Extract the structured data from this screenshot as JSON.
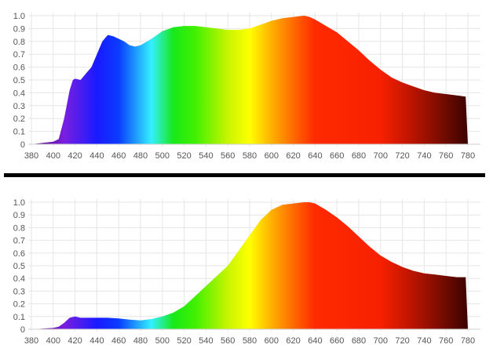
{
  "chart_data": [
    {
      "type": "area",
      "title": "",
      "xlabel": "",
      "ylabel": "",
      "xlim": [
        380,
        780
      ],
      "ylim": [
        0,
        1.0
      ],
      "grid": true,
      "legend": null,
      "fill": "visible-spectrum gradient (violet → blue → cyan → green → yellow → orange → red → dark red)",
      "x_ticks": [
        "380",
        "400",
        "420",
        "440",
        "460",
        "480",
        "500",
        "520",
        "540",
        "560",
        "580",
        "600",
        "620",
        "640",
        "660",
        "680",
        "700",
        "720",
        "740",
        "760",
        "780"
      ],
      "y_ticks": [
        "0",
        "0.1",
        "0.2",
        "0.3",
        "0.4",
        "0.5",
        "0.6",
        "0.7",
        "0.8",
        "0.9",
        "1.0"
      ],
      "x": [
        380,
        390,
        400,
        405,
        410,
        415,
        418,
        420,
        425,
        430,
        435,
        440,
        445,
        450,
        455,
        460,
        465,
        470,
        475,
        480,
        490,
        500,
        510,
        520,
        530,
        540,
        550,
        560,
        570,
        580,
        590,
        600,
        610,
        620,
        630,
        635,
        640,
        650,
        660,
        670,
        680,
        690,
        700,
        710,
        720,
        730,
        740,
        750,
        760,
        770,
        778,
        780
      ],
      "values": [
        0,
        0.01,
        0.02,
        0.04,
        0.2,
        0.42,
        0.5,
        0.51,
        0.5,
        0.55,
        0.6,
        0.7,
        0.8,
        0.85,
        0.84,
        0.82,
        0.8,
        0.77,
        0.76,
        0.77,
        0.82,
        0.88,
        0.91,
        0.92,
        0.92,
        0.91,
        0.9,
        0.89,
        0.89,
        0.9,
        0.93,
        0.96,
        0.98,
        0.99,
        1.0,
        0.99,
        0.97,
        0.92,
        0.87,
        0.8,
        0.73,
        0.65,
        0.58,
        0.52,
        0.48,
        0.45,
        0.42,
        0.4,
        0.39,
        0.38,
        0.37,
        0
      ]
    },
    {
      "type": "area",
      "title": "",
      "xlabel": "",
      "ylabel": "",
      "xlim": [
        380,
        780
      ],
      "ylim": [
        0,
        1.0
      ],
      "grid": true,
      "legend": null,
      "fill": "visible-spectrum gradient (violet → blue → cyan → green → yellow → orange → red → dark red)",
      "x_ticks": [
        "380",
        "400",
        "420",
        "440",
        "460",
        "480",
        "500",
        "520",
        "540",
        "560",
        "580",
        "600",
        "620",
        "640",
        "660",
        "680",
        "700",
        "720",
        "740",
        "760",
        "780"
      ],
      "y_ticks": [
        "0",
        "0.1",
        "0.2",
        "0.3",
        "0.4",
        "0.5",
        "0.6",
        "0.7",
        "0.8",
        "0.9",
        "1.0"
      ],
      "x": [
        380,
        390,
        400,
        405,
        410,
        415,
        420,
        425,
        430,
        440,
        450,
        460,
        470,
        480,
        490,
        500,
        510,
        520,
        530,
        540,
        550,
        560,
        570,
        580,
        590,
        600,
        610,
        620,
        630,
        635,
        640,
        650,
        660,
        670,
        680,
        690,
        700,
        710,
        720,
        730,
        740,
        750,
        760,
        770,
        778,
        780
      ],
      "values": [
        0,
        0.005,
        0.01,
        0.02,
        0.05,
        0.09,
        0.1,
        0.09,
        0.09,
        0.09,
        0.09,
        0.085,
        0.075,
        0.07,
        0.08,
        0.1,
        0.13,
        0.18,
        0.26,
        0.34,
        0.42,
        0.5,
        0.62,
        0.74,
        0.86,
        0.94,
        0.98,
        0.99,
        1.0,
        1.0,
        0.99,
        0.94,
        0.88,
        0.81,
        0.73,
        0.65,
        0.58,
        0.53,
        0.49,
        0.46,
        0.44,
        0.43,
        0.42,
        0.41,
        0.41,
        0
      ]
    }
  ],
  "divider": {
    "color": "#000000"
  },
  "spectrum_colors": {
    "380": "#5b0a6e",
    "410": "#7a1fe0",
    "440": "#1a1aff",
    "460": "#0a3cff",
    "490": "#33f0ff",
    "510": "#18e81a",
    "530": "#40f000",
    "560": "#c8f500",
    "580": "#ffff00",
    "600": "#ffb000",
    "620": "#ff6a00",
    "640": "#ff2a00",
    "700": "#f82000",
    "730": "#b81400",
    "780": "#3a0400"
  }
}
